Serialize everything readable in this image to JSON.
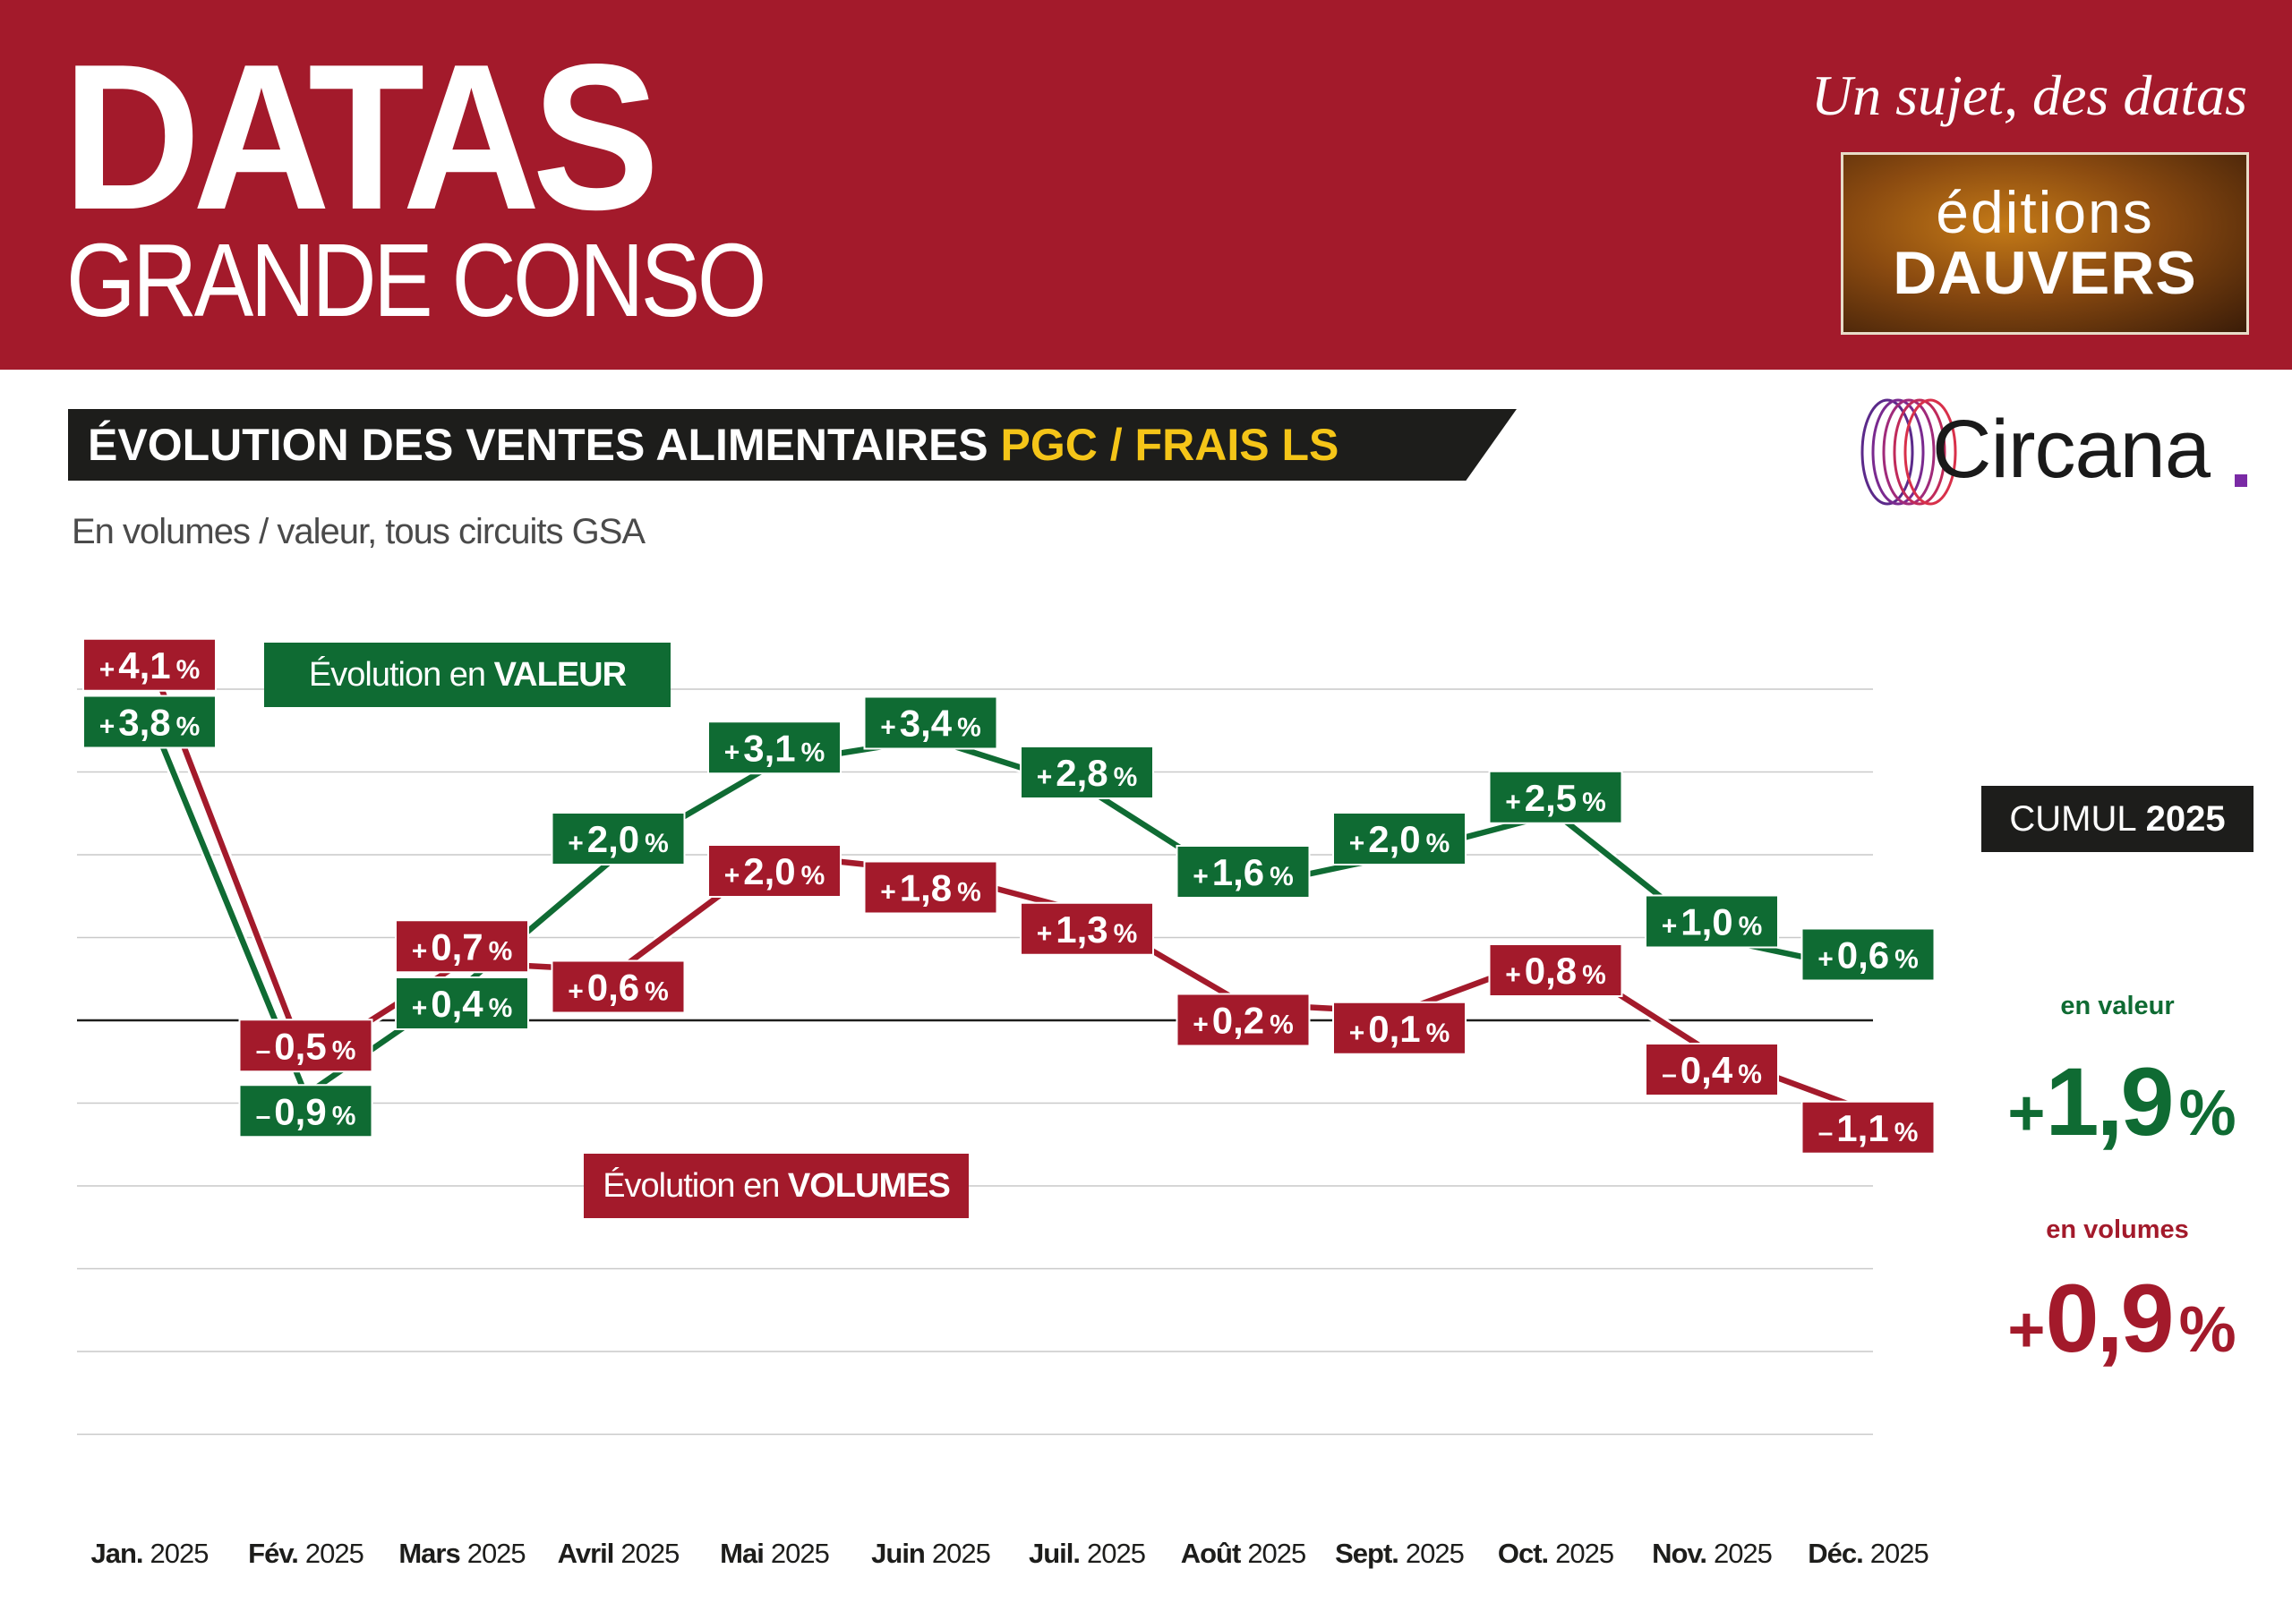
{
  "header": {
    "title": "DATAS",
    "subtitle": "GRANDE CONSO",
    "tagline": "Un sujet, des datas",
    "publisher_line1": "éditions",
    "publisher_line2": "DAUVERS",
    "logo": "Circana"
  },
  "banner": {
    "text": "ÉVOLUTION DES VENTES ALIMENTAIRES ",
    "highlight": "PGC / FRAIS LS"
  },
  "subtitle": "En volumes / valeur, tous circuits GSA",
  "legend": {
    "valeur_prefix": "Évolution en ",
    "valeur_bold": "VALEUR",
    "volumes_prefix": "Évolution en ",
    "volumes_bold": "VOLUMES"
  },
  "cumul": {
    "label": "CUMUL",
    "year": "2025",
    "valeur_label": "en valeur",
    "valeur_sign": "+",
    "valeur_value": "1,9",
    "volumes_label": "en volumes",
    "volumes_sign": "+",
    "volumes_value": "0,9",
    "percent": "%"
  },
  "colors": {
    "red": "#a31a2b",
    "green": "#0f6b33",
    "dark": "#1d1d1b",
    "yellow": "#f5c518"
  },
  "chart_data": {
    "type": "line",
    "title": "ÉVOLUTION DES VENTES ALIMENTAIRES PGC / FRAIS LS",
    "subtitle": "En volumes / valeur, tous circuits GSA",
    "categories": [
      {
        "bold": "Jan.",
        "year": "2025"
      },
      {
        "bold": "Fév.",
        "year": "2025"
      },
      {
        "bold": "Mars",
        "year": "2025"
      },
      {
        "bold": "Avril",
        "year": "2025"
      },
      {
        "bold": "Mai",
        "year": "2025"
      },
      {
        "bold": "Juin",
        "year": "2025"
      },
      {
        "bold": "Juil.",
        "year": "2025"
      },
      {
        "bold": "Août",
        "year": "2025"
      },
      {
        "bold": "Sept.",
        "year": "2025"
      },
      {
        "bold": "Oct.",
        "year": "2025"
      },
      {
        "bold": "Nov.",
        "year": "2025"
      },
      {
        "bold": "Déc.",
        "year": "2025"
      }
    ],
    "series": [
      {
        "name": "Évolution en VALEUR",
        "color": "#0f6b33",
        "values": [
          3.8,
          -0.9,
          0.4,
          2.0,
          3.1,
          3.4,
          2.8,
          1.6,
          2.0,
          2.5,
          1.0,
          0.6
        ],
        "labels": [
          "3,8",
          "0,9",
          "0,4",
          "2,0",
          "3,1",
          "3,4",
          "2,8",
          "1,6",
          "2,0",
          "2,5",
          "1,0",
          "0,6"
        ]
      },
      {
        "name": "Évolution en VOLUMES",
        "color": "#a31a2b",
        "values": [
          4.1,
          -0.5,
          0.7,
          0.6,
          2.0,
          1.8,
          1.3,
          0.2,
          0.1,
          0.8,
          -0.4,
          -1.1
        ],
        "labels": [
          "4,1",
          "0,5",
          "0,7",
          "0,6",
          "2,0",
          "1,8",
          "1,3",
          "0,2",
          "0,1",
          "0,8",
          "0,4",
          "1,1"
        ]
      }
    ],
    "ylim": [
      -5,
      4
    ],
    "zero_line": true,
    "grid": true,
    "percent": "%",
    "signs": {
      "positive": "+",
      "negative": "–"
    }
  }
}
